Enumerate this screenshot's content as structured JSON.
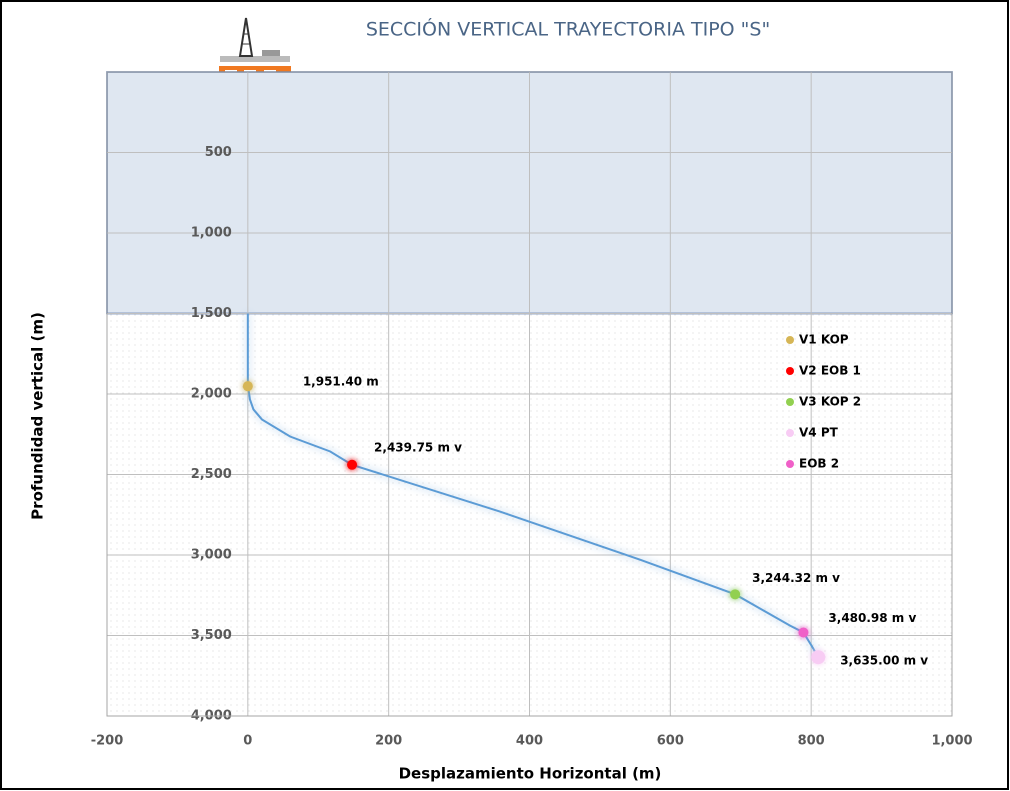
{
  "chart_data": {
    "type": "line",
    "title": "SECCIÓN VERTICAL TRAYECTORIA TIPO \"S\"",
    "x_label": "Desplazamiento Horizontal  (m)",
    "y_label": "Profundidad vertical (m)",
    "xlim": [
      -200,
      1000
    ],
    "xticks": [
      -200,
      0,
      200,
      400,
      600,
      800,
      {
        "value": 1000,
        "label": "1,000"
      }
    ],
    "ylim": [
      0,
      4000
    ],
    "y_inverted": true,
    "yticks": [
      500,
      {
        "value": 1000,
        "label": "1,000"
      },
      {
        "value": 1500,
        "label": "1,500"
      },
      {
        "value": 2000,
        "label": "2,000"
      },
      {
        "value": 2500,
        "label": "2,500"
      },
      {
        "value": 3000,
        "label": "3,000"
      },
      {
        "value": 3500,
        "label": "3,500"
      },
      {
        "value": 4000,
        "label": "4,000"
      }
    ],
    "grid": true,
    "water_band": {
      "from": 0,
      "to": 1500,
      "color": "#dfe7f1",
      "border": "#2f5597"
    },
    "trajectory": {
      "color": "#5b9bd5",
      "x": [
        0,
        0,
        3,
        8,
        20,
        60,
        117,
        148,
        358,
        557,
        692,
        770,
        789,
        802,
        810
      ],
      "values": [
        1500,
        1941,
        2034,
        2096,
        2158,
        2264,
        2357,
        2439.75,
        2730,
        3029,
        3244.32,
        3439,
        3480.98,
        3574,
        3635
      ]
    },
    "legend": "right",
    "series": [
      {
        "name": "V1 KOP",
        "color": "#d6b656",
        "x": [
          0
        ],
        "values": [
          1951.4
        ],
        "value_labels": [
          "1,951.40 m"
        ]
      },
      {
        "name": "V2   EOB 1",
        "color": "#ff0000",
        "x": [
          148
        ],
        "values": [
          2439.75
        ],
        "value_labels": [
          "2,439.75 m v"
        ]
      },
      {
        "name": "V3  KOP 2",
        "color": "#92d050",
        "x": [
          692
        ],
        "values": [
          3244.32
        ],
        "value_labels": [
          "3,244.32 m v"
        ]
      },
      {
        "name": "V4 PT",
        "color": "#f8ccf4",
        "x": [
          810
        ],
        "values": [
          3635
        ],
        "value_labels": [
          "3,635.00 m v"
        ]
      },
      {
        "name": "EOB 2",
        "color": "#f060c8",
        "x": [
          789
        ],
        "values": [
          3480.98
        ],
        "value_labels": [
          "3,480.98  m v"
        ]
      }
    ]
  }
}
